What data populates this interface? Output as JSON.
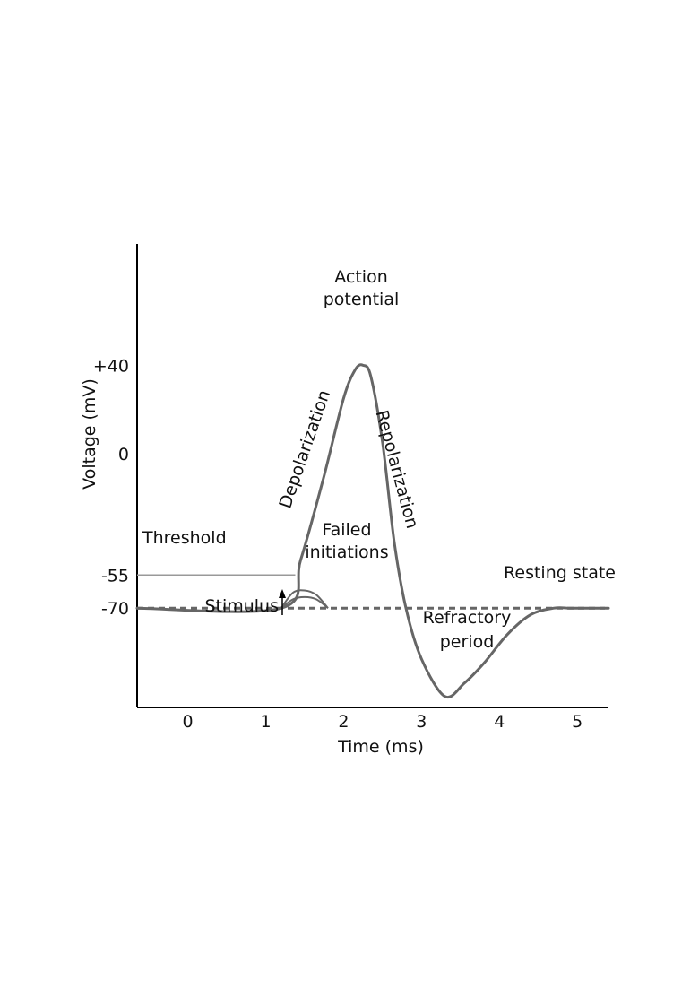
{
  "chart_data": {
    "type": "line",
    "xlabel": "Time (ms)",
    "ylabel": "Voltage (mV)",
    "x_ticks": [
      "0",
      "1",
      "2",
      "3",
      "4",
      "5"
    ],
    "y_ticks": [
      "+40",
      "0",
      "-55",
      "-70"
    ],
    "y_tick_values": [
      40,
      0,
      -55,
      -70
    ],
    "xlim": [
      -0.65,
      5.4
    ],
    "ylim": [
      -115,
      95
    ],
    "grid": false,
    "series": [
      {
        "x": [
          -0.65,
          1.2,
          1.45,
          1.75,
          2.0,
          2.15,
          2.25,
          2.35,
          2.5,
          2.65,
          2.8,
          3.0,
          3.3,
          3.55,
          3.8,
          4.1,
          4.4,
          4.7,
          4.9,
          5.1,
          5.4
        ],
        "y": [
          -70,
          -70,
          -48,
          -10,
          25,
          38,
          40,
          35,
          5,
          -40,
          -70,
          -93,
          -110,
          -104,
          -95,
          -82,
          -73,
          -70,
          -70,
          -70,
          -70
        ]
      }
    ],
    "failed_initiations": [
      {
        "x": [
          1.2,
          1.35,
          1.5,
          1.65,
          1.8
        ],
        "y": [
          -70,
          -63,
          -62,
          -64,
          -70
        ]
      },
      {
        "x": [
          1.2,
          1.35,
          1.5,
          1.65,
          1.8
        ],
        "y": [
          -70,
          -66,
          -65,
          -66,
          -70
        ]
      }
    ],
    "resting_level": -70,
    "threshold_level": -55,
    "stimulus_x": 1.2,
    "annotations": {
      "action_potential": [
        "Action",
        "potential"
      ],
      "depolarization": "Depolarization",
      "repolarization": "Repolarization",
      "threshold": "Threshold",
      "failed_initiations": [
        "Failed",
        "initiations"
      ],
      "resting_state": "Resting state",
      "stimulus": "Stimulus",
      "refractory_period": [
        "Refractory",
        "period"
      ]
    },
    "colors": {
      "curve": "#666666",
      "axis": "#000000",
      "threshold_line": "#999999"
    }
  }
}
